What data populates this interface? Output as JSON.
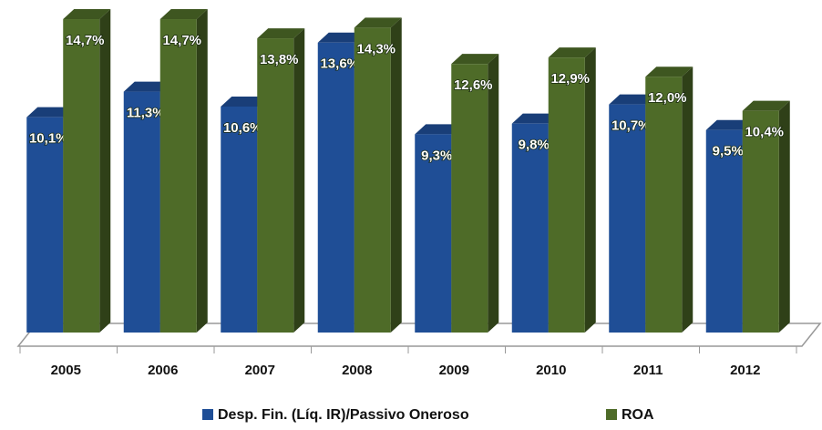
{
  "chart_data": {
    "type": "bar3d",
    "categories": [
      "2005",
      "2006",
      "2007",
      "2008",
      "2009",
      "2010",
      "2011",
      "2012"
    ],
    "series": [
      {
        "name": "Desp. Fin. (Líq. IR)/Passivo Oneroso",
        "color": "#1f4e96",
        "values": [
          10.1,
          11.3,
          10.6,
          13.6,
          9.3,
          9.8,
          10.7,
          9.5
        ],
        "value_labels": [
          "10,1%",
          "11,3%",
          "10,6%",
          "13,6%",
          "9,3%",
          "9,8%",
          "10,7%",
          "9,5%"
        ]
      },
      {
        "name": "ROA",
        "color": "#4e6b28",
        "values": [
          14.7,
          14.7,
          13.8,
          14.3,
          12.6,
          12.9,
          12.0,
          10.4
        ],
        "value_labels": [
          "14,7%",
          "14,7%",
          "13,8%",
          "14,3%",
          "12,6%",
          "12,9%",
          "12,0%",
          "10,4%"
        ]
      }
    ],
    "ylim": [
      0,
      15
    ],
    "legend": "bottom"
  }
}
